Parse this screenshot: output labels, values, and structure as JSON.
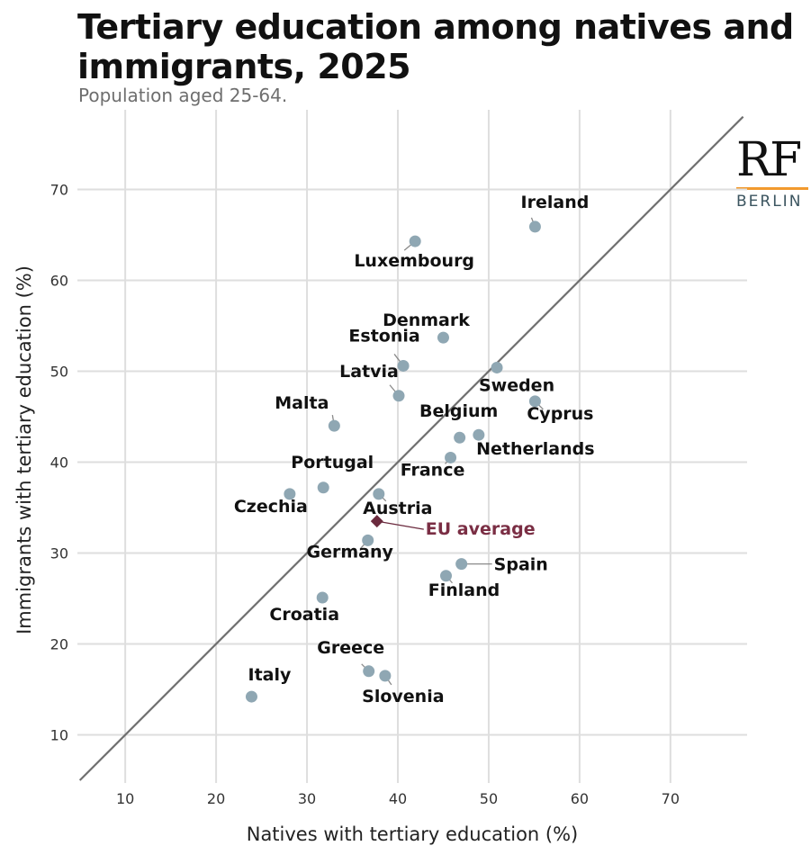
{
  "header": {
    "title": "Tertiary education among natives and immigrants, 2025",
    "subtitle": "Population aged 25-64."
  },
  "logo": {
    "mark": "RF",
    "city": "BERLIN",
    "rule_color": "#f29a2e"
  },
  "chart_data": {
    "type": "scatter",
    "title": "Tertiary education among natives and immigrants, 2025",
    "subtitle": "Population aged 25-64.",
    "xlabel": "Natives with tertiary education (%)",
    "ylabel": "Immigrants with tertiary education (%)",
    "xlim": [
      5,
      78
    ],
    "ylim": [
      5,
      78
    ],
    "xticks": [
      10,
      20,
      30,
      40,
      50,
      60,
      70
    ],
    "yticks": [
      10,
      20,
      30,
      40,
      50,
      60,
      70
    ],
    "grid": true,
    "reference_line": "y = x",
    "colors": {
      "points": "#8fa7b3",
      "eu": "#6b2a3e",
      "eu_label": "#7a2e44",
      "diagonal": "#6f6f6f",
      "grid": "#dedede"
    },
    "points": [
      {
        "name": "Ireland",
        "x": 55.1,
        "y": 65.9
      },
      {
        "name": "Luxembourg",
        "x": 41.9,
        "y": 64.3
      },
      {
        "name": "Denmark",
        "x": 45.0,
        "y": 53.7
      },
      {
        "name": "Estonia",
        "x": 40.6,
        "y": 50.6
      },
      {
        "name": "Sweden",
        "x": 50.9,
        "y": 50.4
      },
      {
        "name": "Latvia",
        "x": 40.1,
        "y": 47.3
      },
      {
        "name": "Cyprus",
        "x": 55.1,
        "y": 46.7
      },
      {
        "name": "Malta",
        "x": 33.0,
        "y": 44.0
      },
      {
        "name": "Belgium",
        "x": 46.8,
        "y": 42.7
      },
      {
        "name": "Netherlands",
        "x": 48.9,
        "y": 43.0
      },
      {
        "name": "France",
        "x": 45.8,
        "y": 40.5
      },
      {
        "name": "Portugal",
        "x": 31.8,
        "y": 37.2
      },
      {
        "name": "Czechia",
        "x": 28.1,
        "y": 36.5
      },
      {
        "name": "Austria",
        "x": 37.9,
        "y": 36.5
      },
      {
        "name": "Germany",
        "x": 36.7,
        "y": 31.4
      },
      {
        "name": "Spain",
        "x": 47.0,
        "y": 28.8
      },
      {
        "name": "Finland",
        "x": 45.3,
        "y": 27.5
      },
      {
        "name": "Croatia",
        "x": 31.7,
        "y": 25.1
      },
      {
        "name": "Greece",
        "x": 36.8,
        "y": 17.0
      },
      {
        "name": "Slovenia",
        "x": 38.6,
        "y": 16.5
      },
      {
        "name": "Italy",
        "x": 23.9,
        "y": 14.2
      }
    ],
    "eu_average": {
      "name": "EU average",
      "x": 37.7,
      "y": 33.5
    }
  }
}
